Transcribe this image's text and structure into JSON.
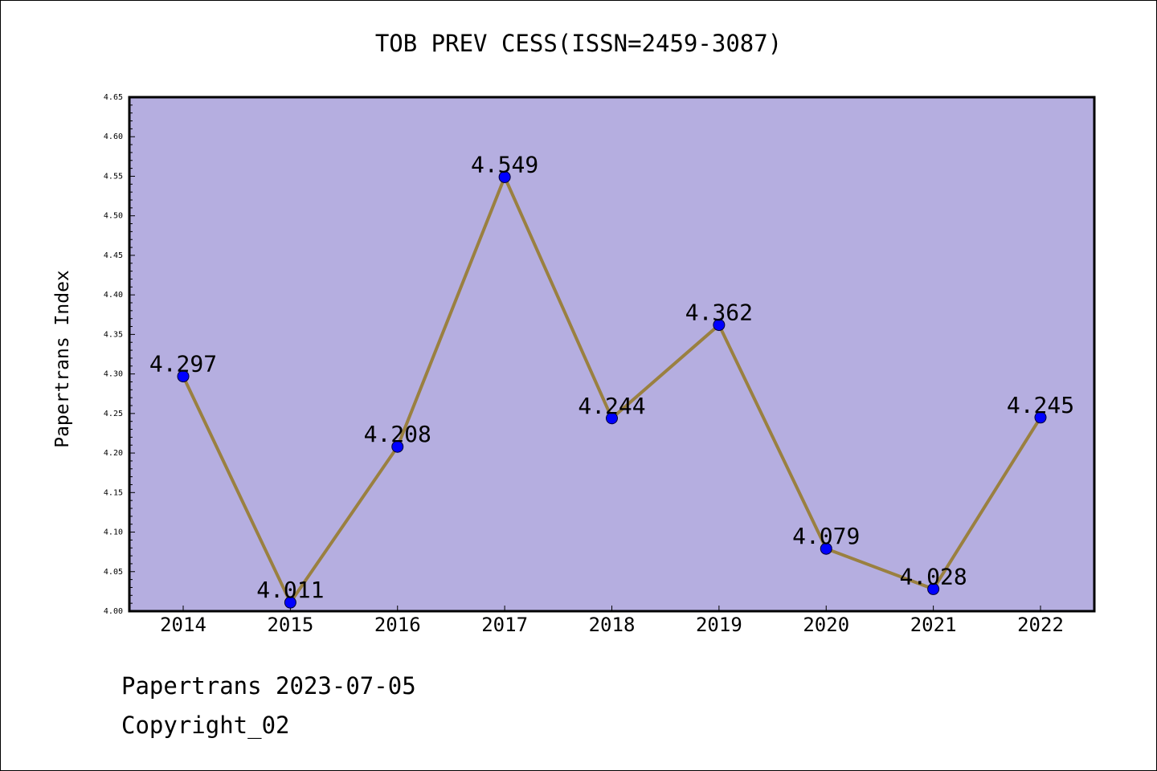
{
  "footer": {
    "date_line": "Papertrans 2023-07-05",
    "copyright_line": "Copyright_02"
  },
  "colors": {
    "plot_background": "#b5aee0",
    "line": "#9a8040",
    "marker": "#0000ff",
    "frame": "#000000"
  },
  "chart_data": {
    "type": "line",
    "title": "TOB PREV CESS(ISSN=2459-3087)",
    "xlabel": "",
    "ylabel": "Papertrans Index",
    "categories": [
      "2014",
      "2015",
      "2016",
      "2017",
      "2018",
      "2019",
      "2020",
      "2021",
      "2022"
    ],
    "series": [
      {
        "values": [
          4.297,
          4.011,
          4.208,
          4.549,
          4.244,
          4.362,
          4.079,
          4.028,
          4.245
        ],
        "labels": [
          "4.297",
          "4.011",
          "4.208",
          "4.549",
          "4.244",
          "4.362",
          "4.079",
          "4.028",
          "4.245"
        ]
      }
    ],
    "ylim": [
      4.0,
      4.65
    ],
    "yticks": [
      "4.00",
      "4.05",
      "4.10",
      "4.15",
      "4.20",
      "4.25",
      "4.30",
      "4.35",
      "4.40",
      "4.45",
      "4.50",
      "4.55",
      "4.60",
      "4.65"
    ],
    "grid": false,
    "legend": "none",
    "marker": "circle"
  }
}
